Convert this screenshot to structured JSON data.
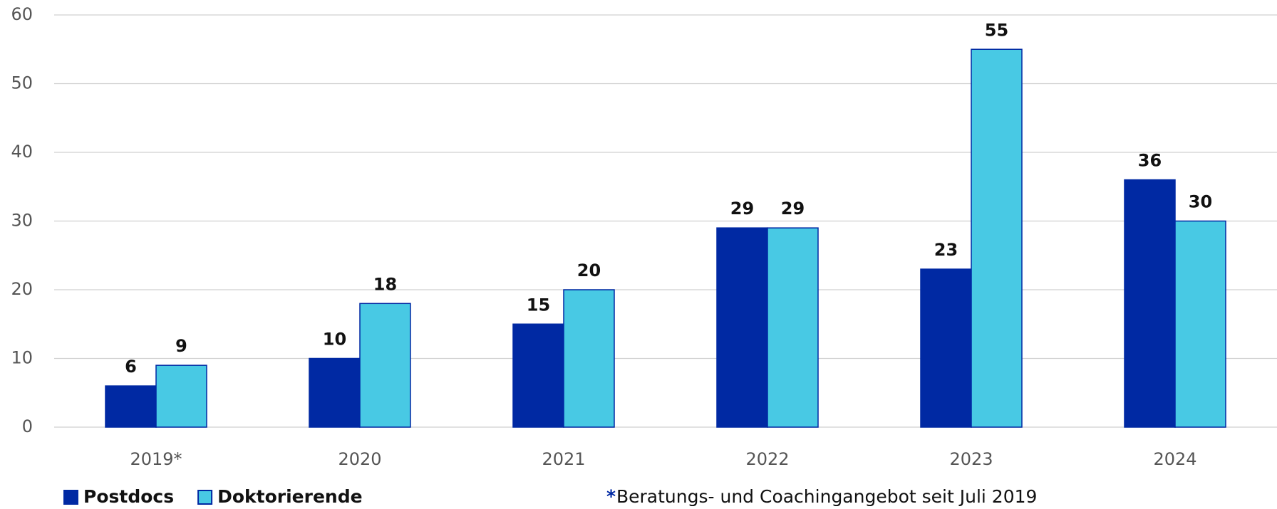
{
  "chart_data": {
    "type": "bar",
    "categories": [
      "2019*",
      "2020",
      "2021",
      "2022",
      "2023",
      "2024"
    ],
    "series": [
      {
        "name": "Postdocs",
        "color": "#0029a3",
        "values": [
          6,
          10,
          15,
          29,
          23,
          36
        ]
      },
      {
        "name": "Doktorierende",
        "color": "#48c9e4",
        "values": [
          9,
          18,
          20,
          29,
          55,
          30
        ]
      }
    ],
    "ylim": [
      0,
      60
    ],
    "yticks": [
      0,
      10,
      20,
      30,
      40,
      50,
      60
    ],
    "grid": true,
    "legend": "bottom-left",
    "footnote": {
      "marker": "*",
      "text": "Beratungs- und Coachingangebot seit Juli 2019"
    }
  }
}
